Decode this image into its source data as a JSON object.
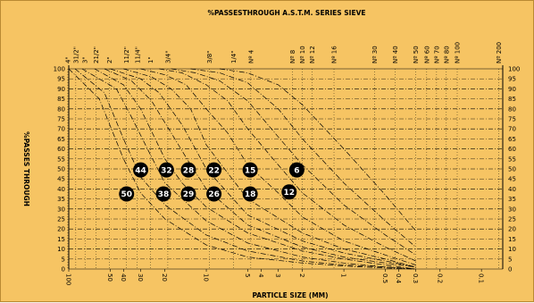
{
  "chart_data": {
    "type": "line",
    "title": "%PASSESTHROUGH A.S.T.M. SERIES SIEVE",
    "xlabel": "PARTICLE SIZE (MM)",
    "ylabel": "%PASSES THROUGH",
    "x_scale": "log-reversed",
    "xlim_mm": [
      100,
      0.07
    ],
    "ylim": [
      0,
      100
    ],
    "grid": true,
    "y_ticks": [
      0,
      5,
      10,
      15,
      20,
      25,
      30,
      35,
      40,
      45,
      50,
      55,
      60,
      65,
      70,
      75,
      80,
      85,
      90,
      95,
      100
    ],
    "bottom_ticks": [
      {
        "label": "100",
        "mm": 100
      },
      {
        "label": "50",
        "mm": 50
      },
      {
        "label": "40",
        "mm": 40
      },
      {
        "label": "30",
        "mm": 30
      },
      {
        "label": "20",
        "mm": 20
      },
      {
        "label": "10",
        "mm": 10
      },
      {
        "label": "5",
        "mm": 5
      },
      {
        "label": "4",
        "mm": 4
      },
      {
        "label": "3",
        "mm": 3
      },
      {
        "label": "2",
        "mm": 2
      },
      {
        "label": "1",
        "mm": 1
      },
      {
        "label": "0.5",
        "mm": 0.5
      },
      {
        "label": "0.4",
        "mm": 0.4
      },
      {
        "label": "0.3",
        "mm": 0.3
      },
      {
        "label": "0.2",
        "mm": 0.2
      },
      {
        "label": "0.1",
        "mm": 0.1
      }
    ],
    "top_ticks": [
      {
        "label": "4\"",
        "mm": 101.6
      },
      {
        "label": "31/2\"",
        "mm": 88.9
      },
      {
        "label": "3\"",
        "mm": 76.2
      },
      {
        "label": "21/2\"",
        "mm": 63.5
      },
      {
        "label": "2\"",
        "mm": 50.8
      },
      {
        "label": "11/2\"",
        "mm": 38.1
      },
      {
        "label": "1\"",
        "mm": 25.4
      },
      {
        "label": "11/4\"",
        "mm": 31.75
      },
      {
        "label": "3/4\"",
        "mm": 19.05
      },
      {
        "label": "3/8\"",
        "mm": 9.525
      },
      {
        "label": "1/4\"",
        "mm": 6.35
      },
      {
        "label": "Nº 4",
        "mm": 4.75
      },
      {
        "label": "Nº 8",
        "mm": 2.36
      },
      {
        "label": "Nº 10",
        "mm": 2.0
      },
      {
        "label": "Nº 12",
        "mm": 1.7
      },
      {
        "label": "Nº 16",
        "mm": 1.18
      },
      {
        "label": "Nº 30",
        "mm": 0.6
      },
      {
        "label": "Nº 40",
        "mm": 0.425
      },
      {
        "label": "Nº 50",
        "mm": 0.3
      },
      {
        "label": "Nº 60",
        "mm": 0.25
      },
      {
        "label": "Nº 70",
        "mm": 0.212
      },
      {
        "label": "Nº 80",
        "mm": 0.18
      },
      {
        "label": "Nº 100",
        "mm": 0.15
      },
      {
        "label": "Nº 200",
        "mm": 0.075
      }
    ],
    "series": [
      {
        "name": "50",
        "points": [
          [
            100,
            100
          ],
          [
            60,
            85
          ],
          [
            40,
            55
          ],
          [
            30,
            38
          ],
          [
            20,
            25
          ],
          [
            10,
            12
          ],
          [
            5,
            6
          ],
          [
            2,
            3
          ],
          [
            1,
            1.5
          ],
          [
            0.5,
            0.5
          ],
          [
            0.3,
            0
          ]
        ]
      },
      {
        "name": "44",
        "points": [
          [
            90,
            100
          ],
          [
            55,
            88
          ],
          [
            40,
            65
          ],
          [
            30,
            46
          ],
          [
            20,
            32
          ],
          [
            10,
            17
          ],
          [
            5,
            9
          ],
          [
            2,
            4
          ],
          [
            1,
            2
          ],
          [
            0.5,
            1
          ],
          [
            0.3,
            0
          ]
        ]
      },
      {
        "name": "38",
        "points": [
          [
            80,
            100
          ],
          [
            45,
            90
          ],
          [
            35,
            76
          ],
          [
            25,
            56
          ],
          [
            20,
            43
          ],
          [
            10,
            24
          ],
          [
            5,
            13
          ],
          [
            2,
            6
          ],
          [
            1,
            3
          ],
          [
            0.5,
            1
          ],
          [
            0.3,
            0
          ]
        ]
      },
      {
        "name": "32",
        "points": [
          [
            65,
            100
          ],
          [
            40,
            92
          ],
          [
            30,
            80
          ],
          [
            20,
            55
          ],
          [
            15,
            43
          ],
          [
            10,
            31
          ],
          [
            5,
            18
          ],
          [
            2,
            9
          ],
          [
            1,
            5
          ],
          [
            0.5,
            2
          ],
          [
            0.3,
            0
          ]
        ]
      },
      {
        "name": "29",
        "points": [
          [
            55,
            100
          ],
          [
            35,
            94
          ],
          [
            25,
            84
          ],
          [
            18,
            68
          ],
          [
            13,
            52
          ],
          [
            10,
            40
          ],
          [
            5,
            22
          ],
          [
            2,
            11
          ],
          [
            1,
            6
          ],
          [
            0.5,
            3
          ],
          [
            0.3,
            1
          ]
        ]
      },
      {
        "name": "28",
        "points": [
          [
            50,
            100
          ],
          [
            30,
            95
          ],
          [
            22,
            88
          ],
          [
            15,
            72
          ],
          [
            12,
            60
          ],
          [
            10,
            50
          ],
          [
            5,
            27
          ],
          [
            2,
            14
          ],
          [
            1,
            8
          ],
          [
            0.5,
            4
          ],
          [
            0.3,
            1
          ]
        ]
      },
      {
        "name": "26",
        "points": [
          [
            40,
            100
          ],
          [
            25,
            96
          ],
          [
            18,
            90
          ],
          [
            13,
            80
          ],
          [
            10,
            62
          ],
          [
            7,
            48
          ],
          [
            5,
            35
          ],
          [
            2,
            18
          ],
          [
            1,
            10
          ],
          [
            0.5,
            5
          ],
          [
            0.3,
            1
          ]
        ]
      },
      {
        "name": "22",
        "points": [
          [
            30,
            100
          ],
          [
            20,
            97
          ],
          [
            14,
            92
          ],
          [
            10,
            80
          ],
          [
            7,
            68
          ],
          [
            5,
            52
          ],
          [
            3,
            38
          ],
          [
            2,
            26
          ],
          [
            1,
            14
          ],
          [
            0.5,
            7
          ],
          [
            0.3,
            2
          ]
        ]
      },
      {
        "name": "18",
        "points": [
          [
            22,
            100
          ],
          [
            15,
            98
          ],
          [
            10,
            92
          ],
          [
            7,
            84
          ],
          [
            5,
            70
          ],
          [
            3,
            52
          ],
          [
            2,
            38
          ],
          [
            1,
            22
          ],
          [
            0.5,
            11
          ],
          [
            0.3,
            4
          ]
        ]
      },
      {
        "name": "15",
        "points": [
          [
            18,
            100
          ],
          [
            12,
            98
          ],
          [
            8,
            94
          ],
          [
            5,
            84
          ],
          [
            3,
            66
          ],
          [
            2,
            52
          ],
          [
            1,
            32
          ],
          [
            0.5,
            17
          ],
          [
            0.3,
            7
          ]
        ]
      },
      {
        "name": "12",
        "points": [
          [
            13,
            100
          ],
          [
            8,
            98
          ],
          [
            5,
            93
          ],
          [
            3,
            80
          ],
          [
            2,
            65
          ],
          [
            1,
            43
          ],
          [
            0.5,
            24
          ],
          [
            0.3,
            11
          ]
        ]
      },
      {
        "name": "6",
        "points": [
          [
            8,
            100
          ],
          [
            5,
            98
          ],
          [
            3,
            92
          ],
          [
            2,
            82
          ],
          [
            1,
            60
          ],
          [
            0.5,
            37
          ],
          [
            0.3,
            19
          ]
        ]
      }
    ],
    "annotations": [
      {
        "label": "44",
        "mm": 30,
        "y": 49.5
      },
      {
        "label": "32",
        "mm": 19.5,
        "y": 49.5
      },
      {
        "label": "28",
        "mm": 13.5,
        "y": 49.5
      },
      {
        "label": "22",
        "mm": 8.8,
        "y": 49.5
      },
      {
        "label": "15",
        "mm": 4.8,
        "y": 49.5
      },
      {
        "label": "6",
        "mm": 2.2,
        "y": 49.5
      },
      {
        "label": "50",
        "mm": 38,
        "y": 37.5
      },
      {
        "label": "38",
        "mm": 20.5,
        "y": 37.5
      },
      {
        "label": "29",
        "mm": 13.5,
        "y": 37.5
      },
      {
        "label": "26",
        "mm": 8.8,
        "y": 37.5
      },
      {
        "label": "18",
        "mm": 4.8,
        "y": 37.5
      },
      {
        "label": "12",
        "mm": 2.5,
        "y": 38.5
      }
    ],
    "colors": {
      "background": "#f6c463",
      "ink": "#000000",
      "badge_text": "#ffffff"
    }
  }
}
